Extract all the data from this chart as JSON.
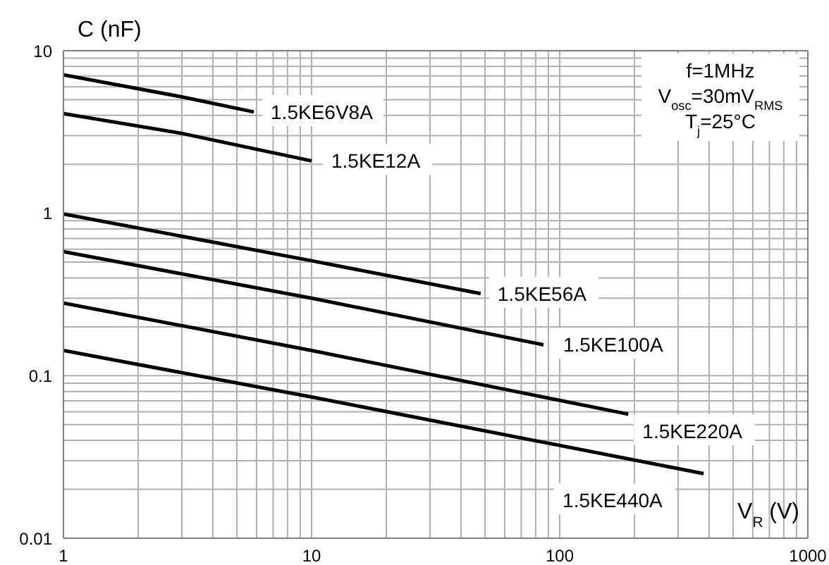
{
  "chart_data": {
    "type": "line",
    "ylabel": "C (nF)",
    "xlabel": "V$_{R}$ (V)",
    "annotations": [
      "f=1MHz",
      "V$_{osc}$=30mV$_{RMS}$",
      "T$_{j}$=25°C"
    ],
    "series": [
      {
        "name": "1.5KE6V8A",
        "color": "#000000",
        "x": [
          1,
          3,
          5.85
        ],
        "values": [
          7.1,
          5.2,
          4.2
        ]
      },
      {
        "name": "1.5KE12A",
        "color": "#000000",
        "x": [
          1,
          3,
          10
        ],
        "values": [
          4.1,
          3.1,
          2.1
        ]
      },
      {
        "name": "1.5KE56A",
        "color": "#000000",
        "x": [
          1,
          10,
          48
        ],
        "values": [
          0.99,
          0.51,
          0.32
        ]
      },
      {
        "name": "1.5KE100A",
        "color": "#000000",
        "x": [
          1,
          10,
          86
        ],
        "values": [
          0.58,
          0.3,
          0.155
        ]
      },
      {
        "name": "1.5KE220A",
        "color": "#000000",
        "x": [
          1,
          10,
          189
        ],
        "values": [
          0.28,
          0.143,
          0.058
        ]
      },
      {
        "name": "1.5KE440A",
        "color": "#000000",
        "x": [
          1,
          10,
          380
        ],
        "values": [
          0.143,
          0.074,
          0.025
        ]
      }
    ],
    "log": "xy",
    "xlim": [
      1,
      1000
    ],
    "ylim": [
      0.01,
      10
    ],
    "xticks": [
      1,
      {
        "value": 2,
        "label": null
      },
      {
        "value": 3,
        "label": null
      },
      {
        "value": 4,
        "label": null
      },
      {
        "value": 5,
        "label": null
      },
      {
        "value": 6,
        "label": null
      },
      {
        "value": 7,
        "label": null
      },
      {
        "value": 8,
        "label": null
      },
      {
        "value": 9,
        "label": null
      },
      10,
      {
        "value": 20,
        "label": null
      },
      {
        "value": 30,
        "label": null
      },
      {
        "value": 40,
        "label": null
      },
      {
        "value": 50,
        "label": null
      },
      {
        "value": 60,
        "label": null
      },
      {
        "value": 70,
        "label": null
      },
      {
        "value": 80,
        "label": null
      },
      {
        "value": 90,
        "label": null
      },
      100,
      {
        "value": 200,
        "label": null
      },
      {
        "value": 300,
        "label": null
      },
      {
        "value": 400,
        "label": null
      },
      {
        "value": 500,
        "label": null
      },
      {
        "value": 600,
        "label": null
      },
      {
        "value": 700,
        "label": null
      },
      {
        "value": 800,
        "label": null
      },
      {
        "value": 900,
        "label": null
      },
      1000
    ],
    "yticks": [
      0.01,
      {
        "value": 0.02,
        "label": null
      },
      {
        "value": 0.03,
        "label": null
      },
      {
        "value": 0.04,
        "label": null
      },
      {
        "value": 0.05,
        "label": null
      },
      {
        "value": 0.06,
        "label": null
      },
      {
        "value": 0.07,
        "label": null
      },
      {
        "value": 0.08,
        "label": null
      },
      {
        "value": 0.09,
        "label": null
      },
      0.1,
      {
        "value": 0.2,
        "label": null
      },
      {
        "value": 0.3,
        "label": null
      },
      {
        "value": 0.4,
        "label": null
      },
      {
        "value": 0.5,
        "label": null
      },
      {
        "value": 0.6,
        "label": null
      },
      {
        "value": 0.7,
        "label": null
      },
      {
        "value": 0.8,
        "label": null
      },
      {
        "value": 0.9,
        "label": null
      },
      1,
      {
        "value": 2,
        "label": null
      },
      {
        "value": 3,
        "label": null
      },
      {
        "value": 4,
        "label": null
      },
      {
        "value": 5,
        "label": null
      },
      {
        "value": 6,
        "label": null
      },
      {
        "value": 7,
        "label": null
      },
      {
        "value": 8,
        "label": null
      },
      {
        "value": 9,
        "label": null
      },
      10
    ],
    "grid": true,
    "marker": "none",
    "line_style": "solid"
  }
}
